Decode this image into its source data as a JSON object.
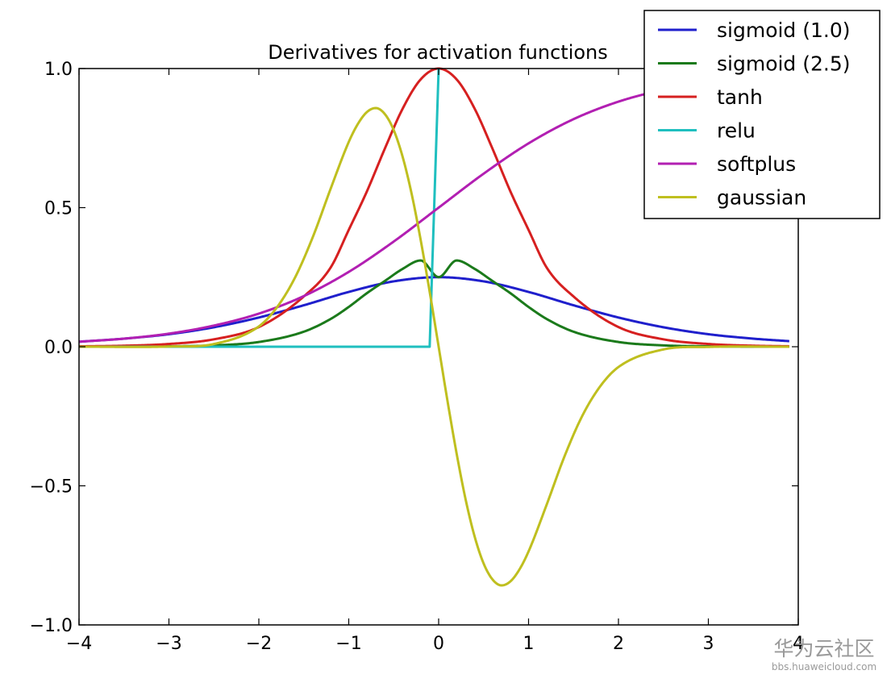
{
  "chart_data": {
    "type": "line",
    "title": "Derivatives for activation functions",
    "xlabel": "",
    "ylabel": "",
    "xlim": [
      -4,
      4
    ],
    "ylim": [
      -1.0,
      1.0
    ],
    "x_ticks": [
      -4,
      -3,
      -2,
      -1,
      0,
      1,
      2,
      3,
      4
    ],
    "x_tick_labels": [
      "−4",
      "−3",
      "−2",
      "−1",
      "0",
      "1",
      "2",
      "3",
      "4"
    ],
    "y_ticks": [
      1.0,
      0.5,
      0.0,
      -0.5,
      -1.0
    ],
    "y_tick_labels": [
      "1.0",
      "0.5",
      "0.0",
      "−0.5",
      "−1.0"
    ],
    "grid": false,
    "legend_position": "top-right",
    "x_step": 0.1,
    "series": [
      {
        "name": "sigmoid (1.0)",
        "color": "#1f1fcc",
        "x": [
          -4.0,
          -3.5,
          -3.0,
          -2.5,
          -2.0,
          -1.5,
          -1.0,
          -0.5,
          0.0,
          0.5,
          1.0,
          1.5,
          2.0,
          2.5,
          3.0,
          3.5,
          3.9
        ],
        "y": [
          0.018,
          0.029,
          0.045,
          0.07,
          0.105,
          0.149,
          0.197,
          0.235,
          0.25,
          0.235,
          0.197,
          0.149,
          0.105,
          0.07,
          0.045,
          0.029,
          0.02
        ]
      },
      {
        "name": "sigmoid (2.5)",
        "color": "#1b7a1b",
        "x": [
          -4.0,
          -3.0,
          -2.5,
          -2.0,
          -1.5,
          -1.2,
          -1.0,
          -0.8,
          -0.6,
          -0.4,
          -0.2,
          0.0,
          0.2,
          0.4,
          0.6,
          0.8,
          1.0,
          1.2,
          1.5,
          2.0,
          2.5,
          3.0,
          3.9
        ],
        "y": [
          0.0001,
          0.0014,
          0.0048,
          0.017,
          0.054,
          0.1,
          0.143,
          0.192,
          0.236,
          0.28,
          0.31,
          0.25,
          0.31,
          0.28,
          0.236,
          0.192,
          0.143,
          0.1,
          0.054,
          0.017,
          0.0048,
          0.0014,
          0.0001
        ]
      },
      {
        "name": "tanh",
        "color": "#d62020",
        "x": [
          -4.0,
          -3.5,
          -3.0,
          -2.5,
          -2.0,
          -1.5,
          -1.2,
          -1.0,
          -0.8,
          -0.6,
          -0.4,
          -0.2,
          0.0,
          0.2,
          0.4,
          0.6,
          0.8,
          1.0,
          1.2,
          1.5,
          2.0,
          2.5,
          3.0,
          3.5,
          3.9
        ],
        "y": [
          0.0013,
          0.0036,
          0.0099,
          0.0266,
          0.0707,
          0.1807,
          0.2854,
          0.42,
          0.557,
          0.711,
          0.856,
          0.961,
          1.0,
          0.961,
          0.856,
          0.711,
          0.557,
          0.42,
          0.2854,
          0.1807,
          0.0707,
          0.0266,
          0.0099,
          0.0036,
          0.0016
        ]
      },
      {
        "name": "relu",
        "color": "#1fbfbf",
        "x": [
          -4.0,
          -0.1,
          0.0
        ],
        "y": [
          0.0,
          0.0,
          1.0
        ]
      },
      {
        "name": "softplus",
        "color": "#b21fb2",
        "x": [
          -4.0,
          -3.5,
          -3.0,
          -2.5,
          -2.0,
          -1.5,
          -1.0,
          -0.5,
          0.0,
          0.5,
          1.0,
          1.5,
          2.0,
          2.5,
          2.75
        ],
        "y": [
          0.018,
          0.029,
          0.047,
          0.076,
          0.119,
          0.182,
          0.269,
          0.378,
          0.5,
          0.622,
          0.731,
          0.818,
          0.881,
          0.924,
          0.94
        ]
      },
      {
        "name": "gaussian",
        "color": "#bfbf1f",
        "x": [
          -4.0,
          -3.0,
          -2.5,
          -2.0,
          -1.8,
          -1.6,
          -1.4,
          -1.2,
          -1.0,
          -0.9,
          -0.8,
          -0.7,
          -0.6,
          -0.5,
          -0.4,
          -0.3,
          -0.2,
          -0.1,
          0.0,
          0.1,
          0.2,
          0.3,
          0.4,
          0.5,
          0.6,
          0.7,
          0.8,
          0.9,
          1.0,
          1.2,
          1.4,
          1.6,
          1.8,
          2.0,
          2.5,
          3.0,
          3.9
        ],
        "y": [
          0.0,
          0.0007,
          0.0097,
          0.073,
          0.141,
          0.247,
          0.394,
          0.569,
          0.736,
          0.8,
          0.843,
          0.858,
          0.837,
          0.779,
          0.682,
          0.549,
          0.384,
          0.198,
          0.0,
          -0.198,
          -0.384,
          -0.549,
          -0.682,
          -0.779,
          -0.837,
          -0.858,
          -0.843,
          -0.8,
          -0.736,
          -0.569,
          -0.394,
          -0.247,
          -0.141,
          -0.073,
          -0.0097,
          -0.0007,
          0.0
        ]
      }
    ]
  },
  "watermark": {
    "site_name": "华为云社区",
    "url": "bbs.huaweicloud.com"
  }
}
